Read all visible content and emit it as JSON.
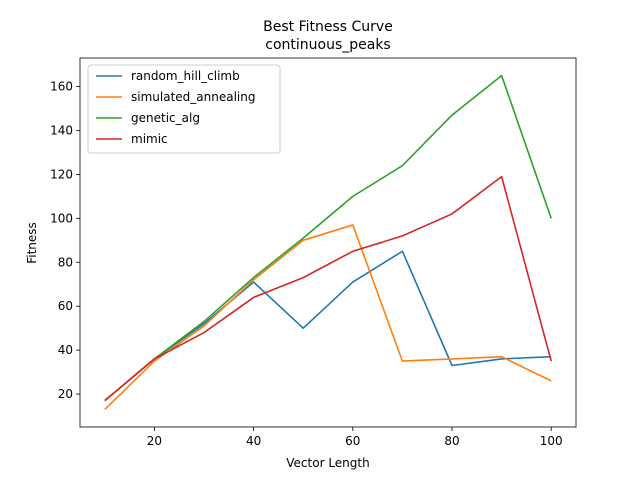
{
  "chart_data": {
    "type": "line",
    "title": "Best Fitness Curve",
    "subtitle": "continuous_peaks",
    "xlabel": "Vector Length",
    "ylabel": "Fitness",
    "xlim": [
      5,
      105
    ],
    "ylim": [
      5,
      173
    ],
    "xticks": [
      20,
      40,
      60,
      80,
      100
    ],
    "yticks": [
      20,
      40,
      60,
      80,
      100,
      120,
      140,
      160
    ],
    "grid": false,
    "legend_position": "upper-left",
    "x": [
      10,
      20,
      30,
      40,
      50,
      60,
      70,
      80,
      90,
      100
    ],
    "series": [
      {
        "name": "random_hill_climb",
        "color": "#1f77b4",
        "values": [
          17,
          36,
          52,
          71,
          50,
          71,
          85,
          33,
          36,
          37
        ]
      },
      {
        "name": "simulated_annealing",
        "color": "#ff7f0e",
        "values": [
          13,
          35,
          51,
          72,
          90,
          97,
          35,
          36,
          37,
          26
        ]
      },
      {
        "name": "genetic_alg",
        "color": "#2ca02c",
        "values": [
          17,
          36,
          53,
          73,
          91,
          110,
          124,
          147,
          165,
          100
        ]
      },
      {
        "name": "mimic",
        "color": "#d62728",
        "values": [
          17,
          36,
          48,
          64,
          73,
          85,
          92,
          102,
          119,
          35
        ]
      }
    ]
  }
}
